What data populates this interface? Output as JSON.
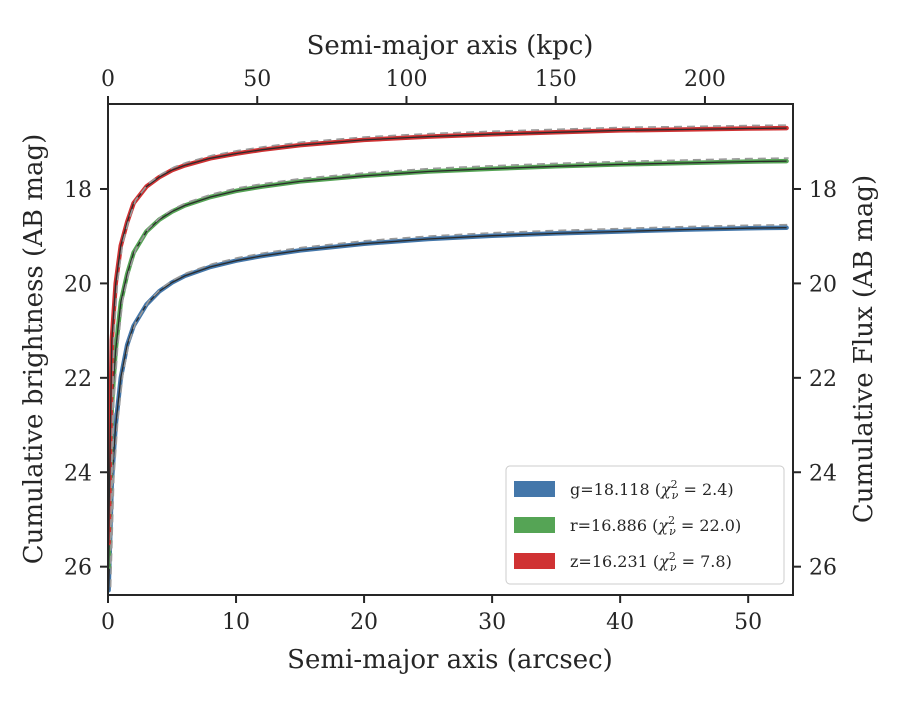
{
  "chart_data": {
    "type": "line",
    "xlabel_bottom": "Semi-major axis (arcsec)",
    "xlabel_top": "Semi-major axis (kpc)",
    "ylabel_left": "Cumulative brightness (AB mag)",
    "ylabel_right": "Cumulative Flux (AB mag)",
    "xlim": [
      0,
      53.5
    ],
    "ylim": [
      26.6,
      16.2
    ],
    "y_inverted": true,
    "x_top_lim": [
      0,
      229.5
    ],
    "x_ticks": [
      "0",
      "10",
      "20",
      "30",
      "40",
      "50"
    ],
    "x_top_ticks": [
      "0",
      "50",
      "100",
      "150",
      "200"
    ],
    "y_ticks": [
      "18",
      "20",
      "22",
      "24",
      "26"
    ],
    "legend_position": "lower right",
    "grid": false,
    "series": [
      {
        "name": "g=18.118 ($\\chi^2_\\nu = 2.4$)",
        "legend_label": "g=18.118 (χ²ν = 2.4)",
        "label_main": "g=18.118 (",
        "chi_value": "2.4",
        "color": "#4477aa",
        "x": [
          0.05,
          0.3,
          0.6,
          1,
          1.5,
          2,
          3,
          4,
          5,
          6,
          8,
          10,
          12,
          15,
          20,
          25,
          30,
          35,
          40,
          45,
          50,
          53
        ],
        "y": [
          26.5,
          24.2,
          23.0,
          22.0,
          21.3,
          20.9,
          20.45,
          20.17,
          19.98,
          19.84,
          19.65,
          19.52,
          19.42,
          19.3,
          19.16,
          19.06,
          18.99,
          18.94,
          18.9,
          18.86,
          18.83,
          18.82
        ]
      },
      {
        "name": "r=16.886 ($\\chi^2_\\nu = 22.0$)",
        "legend_label": "r=16.886 (χ²ν = 22.0)",
        "label_main": "r=16.886 (",
        "chi_value": "22.0",
        "color": "#55a455",
        "x": [
          0.05,
          0.3,
          0.6,
          1,
          1.5,
          2,
          3,
          4,
          5,
          6,
          8,
          10,
          12,
          15,
          20,
          25,
          30,
          35,
          40,
          45,
          50,
          53
        ],
        "y": [
          26.0,
          22.6,
          21.4,
          20.4,
          19.8,
          19.35,
          18.9,
          18.65,
          18.48,
          18.35,
          18.17,
          18.04,
          17.95,
          17.84,
          17.72,
          17.63,
          17.57,
          17.52,
          17.48,
          17.45,
          17.42,
          17.41
        ]
      },
      {
        "name": "z=16.231 ($\\chi^2_\\nu = 7.8$)",
        "legend_label": "z=16.231 (χ²ν = 7.8)",
        "label_main": "z=16.231 (",
        "chi_value": "7.8",
        "color": "#d03233",
        "x": [
          0.05,
          0.3,
          0.6,
          1,
          1.5,
          2,
          3,
          4,
          5,
          6,
          8,
          10,
          12,
          15,
          20,
          25,
          30,
          35,
          40,
          45,
          50,
          53
        ],
        "y": [
          25.5,
          21.2,
          20.0,
          19.2,
          18.7,
          18.3,
          17.95,
          17.75,
          17.6,
          17.5,
          17.35,
          17.25,
          17.17,
          17.07,
          16.96,
          16.89,
          16.84,
          16.8,
          16.76,
          16.74,
          16.72,
          16.71
        ]
      }
    ]
  }
}
